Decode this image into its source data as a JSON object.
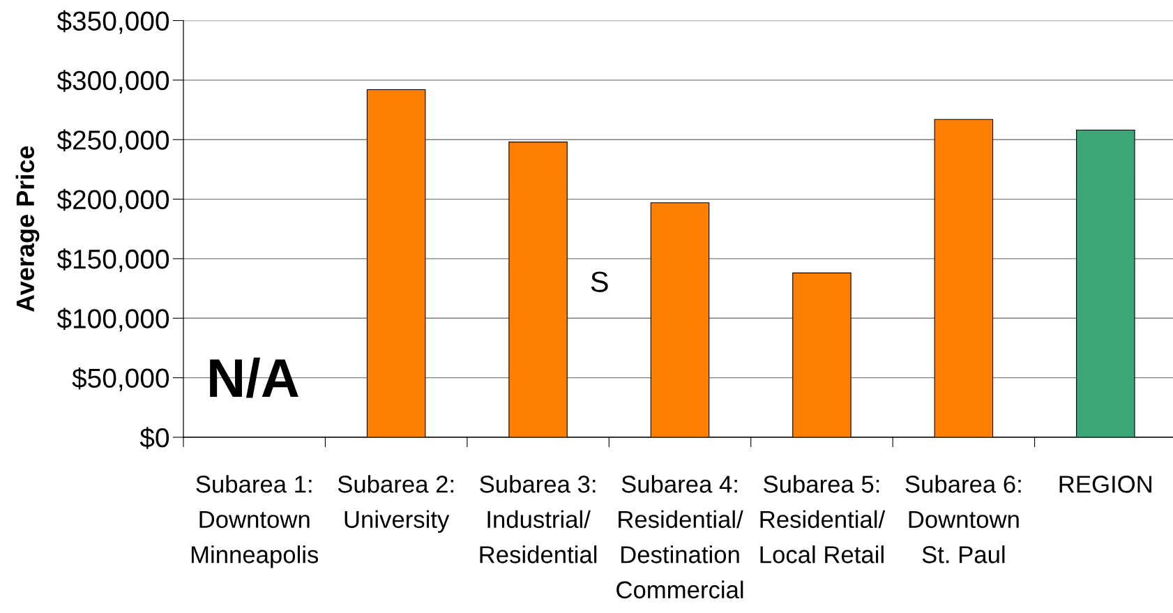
{
  "chart_data": {
    "type": "bar",
    "ylabel": "Average Price",
    "categories": [
      "Subarea 1:\nDowntown\nMinneapolis",
      "Subarea 2:\nUniversity",
      "Subarea 3:\nIndustrial/\nResidential",
      "Subarea 4:\nResidential/\nDestination\nCommercial",
      "Subarea 5:\nResidential/\nLocal Retail",
      "Subarea 6:\nDowntown\nSt. Paul",
      "REGION"
    ],
    "values": [
      null,
      292000,
      248000,
      197000,
      138000,
      267000,
      258000
    ],
    "colors": [
      "#ff7f00",
      "#ff7f00",
      "#ff7f00",
      "#ff7f00",
      "#ff7f00",
      "#ff7f00",
      "#3ca678"
    ],
    "ylim": [
      0,
      350000
    ],
    "yticks": [
      {
        "value": 0,
        "label": "$0"
      },
      {
        "value": 50000,
        "label": "$50,000"
      },
      {
        "value": 100000,
        "label": "$100,000"
      },
      {
        "value": 150000,
        "label": "$150,000"
      },
      {
        "value": 200000,
        "label": "$200,000"
      },
      {
        "value": 250000,
        "label": "$250,000"
      },
      {
        "value": 300000,
        "label": "$300,000"
      },
      {
        "value": 350000,
        "label": "$350,000"
      }
    ],
    "grid": "y",
    "annotations": [
      "N/A",
      "S"
    ]
  }
}
